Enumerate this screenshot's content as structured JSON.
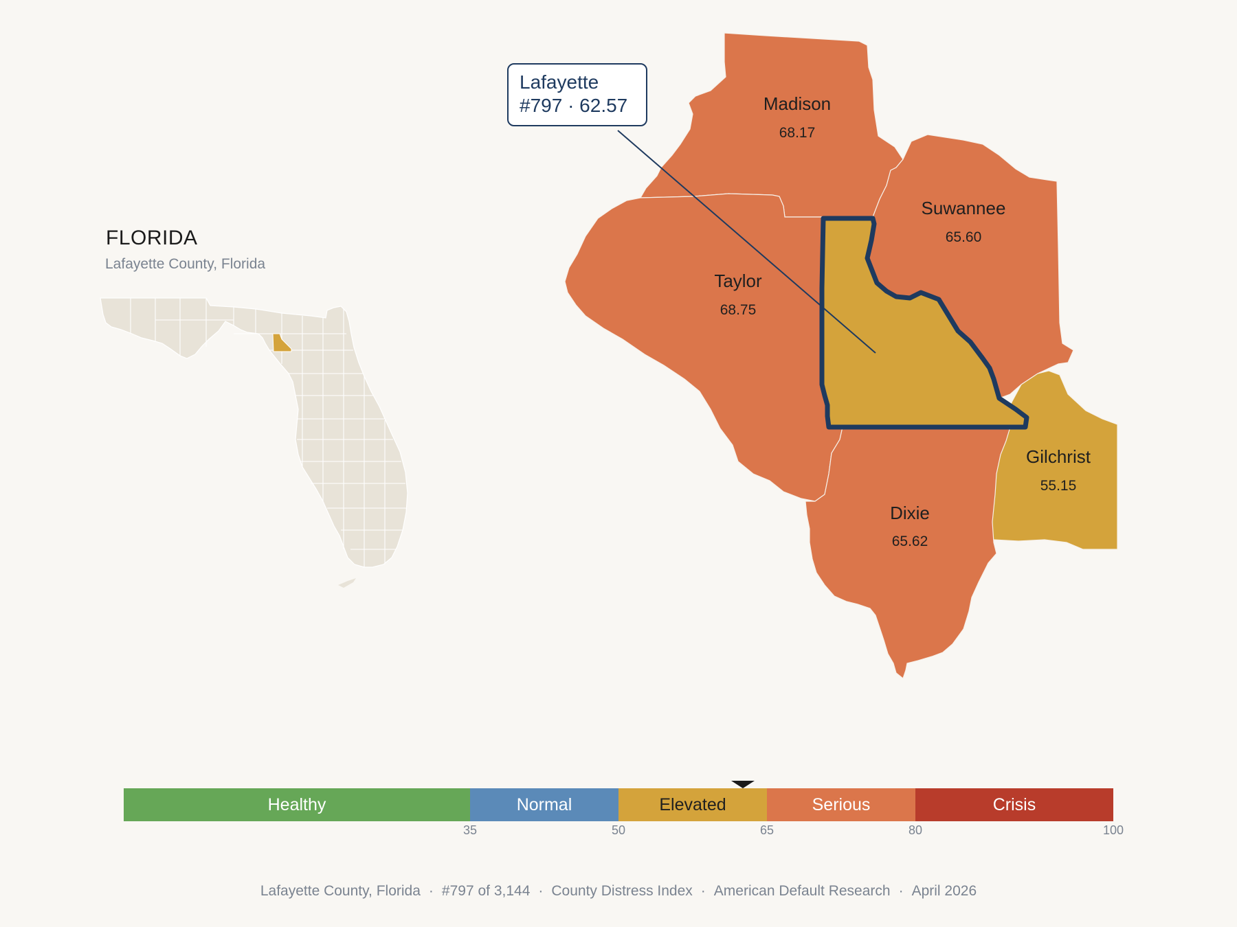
{
  "state": {
    "title": "FLORIDA",
    "subtitle": "Lafayette County, Florida"
  },
  "colors": {
    "healthy": "#66a757",
    "normal": "#5b8ab8",
    "elevated": "#d4a33b",
    "serious": "#db764b",
    "crisis": "#b83c2b",
    "highlight_border": "#1e3a5f",
    "state_fill": "#e8e3d8"
  },
  "callout": {
    "name": "Lafayette",
    "detail": "#797 · 62.57"
  },
  "counties": [
    {
      "name": "Madison",
      "score": "68.17",
      "category": "serious"
    },
    {
      "name": "Suwannee",
      "score": "65.60",
      "category": "serious"
    },
    {
      "name": "Taylor",
      "score": "68.75",
      "category": "serious"
    },
    {
      "name": "Lafayette",
      "score": "62.57",
      "category": "elevated",
      "highlighted": true
    },
    {
      "name": "Gilchrist",
      "score": "55.15",
      "category": "elevated"
    },
    {
      "name": "Dixie",
      "score": "65.62",
      "category": "serious"
    }
  ],
  "scale": {
    "marker_value": 62.57,
    "segments": [
      {
        "label": "Healthy",
        "from": 0,
        "to": 35,
        "color": "#66a757"
      },
      {
        "label": "Normal",
        "from": 35,
        "to": 50,
        "color": "#5b8ab8"
      },
      {
        "label": "Elevated",
        "from": 50,
        "to": 65,
        "color": "#d4a33b"
      },
      {
        "label": "Serious",
        "from": 65,
        "to": 80,
        "color": "#db764b"
      },
      {
        "label": "Crisis",
        "from": 80,
        "to": 100,
        "color": "#b83c2b"
      }
    ],
    "ticks": [
      "35",
      "50",
      "65",
      "80",
      "100"
    ]
  },
  "footer": [
    "Lafayette County, Florida",
    "#797 of 3,144",
    "County Distress Index",
    "American Default Research",
    "April 2026"
  ]
}
